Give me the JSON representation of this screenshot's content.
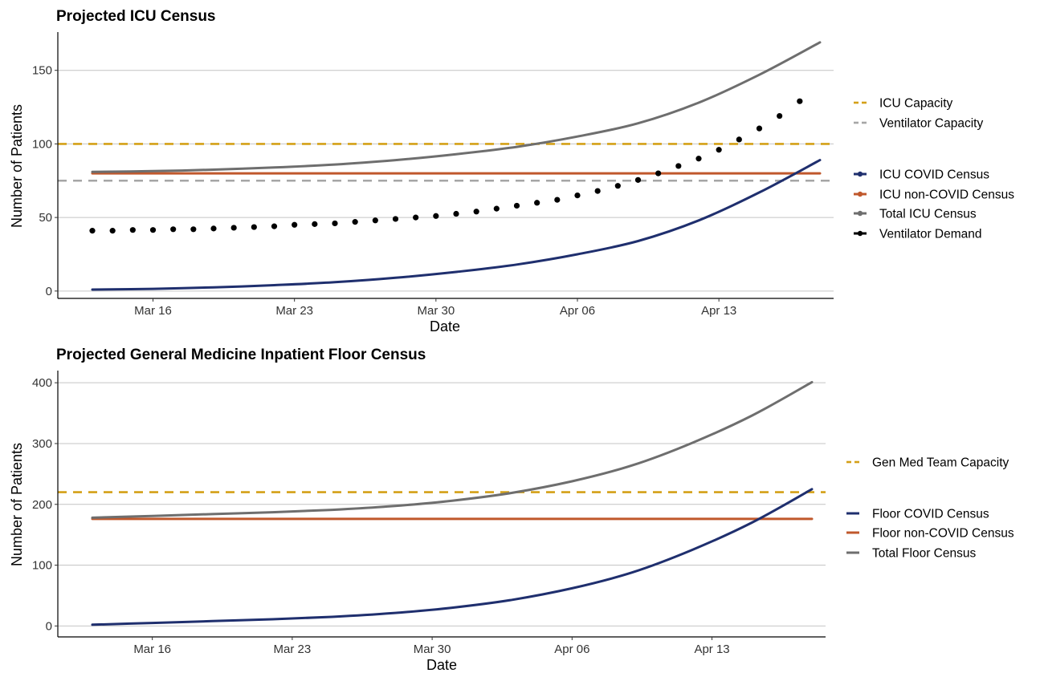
{
  "chart_data": [
    {
      "type": "line",
      "title": "Projected ICU Census",
      "xlabel": "Date",
      "ylabel": "Number of Patients",
      "x_range": [
        "2020-03-13",
        "2020-04-18"
      ],
      "ylim": [
        -5,
        176
      ],
      "y_ticks": [
        0,
        50,
        100,
        150
      ],
      "x_ticks": [
        {
          "date": "2020-03-16",
          "label": "Mar 16"
        },
        {
          "date": "2020-03-23",
          "label": "Mar 23"
        },
        {
          "date": "2020-03-30",
          "label": "Mar 30"
        },
        {
          "date": "2020-04-06",
          "label": "Apr 06"
        },
        {
          "date": "2020-04-13",
          "label": "Apr 13"
        }
      ],
      "grid": "horizontal major",
      "legend_position": "right",
      "capacity_lines": [
        {
          "name": "ICU Capacity",
          "value": 100,
          "color": "#D4A017",
          "style": "dashed"
        },
        {
          "name": "Ventilator Capacity",
          "value": 75,
          "color": "#A6A6A6",
          "style": "dashed"
        }
      ],
      "x_dates": [
        "2020-03-13",
        "2020-03-16",
        "2020-03-19",
        "2020-03-22",
        "2020-03-25",
        "2020-03-28",
        "2020-03-31",
        "2020-04-03",
        "2020-04-06",
        "2020-04-09",
        "2020-04-12",
        "2020-04-15",
        "2020-04-18"
      ],
      "series": [
        {
          "name": "ICU COVID Census",
          "color": "#1F2F6E",
          "values": [
            1,
            1.5,
            2.5,
            4,
            6,
            9,
            13,
            18,
            25,
            34,
            48,
            67,
            89
          ]
        },
        {
          "name": "ICU non-COVID Census",
          "color": "#C0582C",
          "values": [
            80,
            80,
            80,
            80,
            80,
            80,
            80,
            80,
            80,
            80,
            80,
            80,
            80
          ]
        },
        {
          "name": "Total ICU Census",
          "color": "#6E6E6E",
          "values": [
            81,
            81.5,
            82.5,
            84,
            86,
            89,
            93,
            98,
            105,
            114,
            128,
            147,
            169
          ]
        }
      ],
      "points": {
        "name": "Ventilator Demand",
        "color": "#000000",
        "start": "2020-03-13",
        "values": [
          41,
          41,
          41.5,
          41.5,
          42,
          42,
          42.5,
          43,
          43.5,
          44,
          45,
          45.5,
          46,
          47,
          48,
          49,
          50,
          51,
          52.5,
          54,
          56,
          58,
          60,
          62,
          65,
          68,
          71.5,
          75.5,
          80,
          85,
          90,
          96,
          103,
          110.5,
          119,
          129
        ]
      },
      "legend": [
        {
          "label": "ICU Capacity",
          "kind": "dashed",
          "color": "#D4A017"
        },
        {
          "label": "Ventilator Capacity",
          "kind": "dashed",
          "color": "#A6A6A6"
        },
        {
          "label": "ICU COVID Census",
          "kind": "line-point",
          "color": "#1F2F6E"
        },
        {
          "label": "ICU non-COVID Census",
          "kind": "line-point",
          "color": "#C0582C"
        },
        {
          "label": "Total ICU Census",
          "kind": "line-point",
          "color": "#6E6E6E"
        },
        {
          "label": "Ventilator Demand",
          "kind": "line-point",
          "color": "#000000"
        }
      ]
    },
    {
      "type": "line",
      "title": "Projected General Medicine Inpatient Floor Census",
      "xlabel": "Date",
      "ylabel": "Number of Patients",
      "x_range": [
        "2020-03-13",
        "2020-04-18"
      ],
      "ylim": [
        -18,
        420
      ],
      "y_ticks": [
        0,
        100,
        200,
        300,
        400
      ],
      "x_ticks": [
        {
          "date": "2020-03-16",
          "label": "Mar 16"
        },
        {
          "date": "2020-03-23",
          "label": "Mar 23"
        },
        {
          "date": "2020-03-30",
          "label": "Mar 30"
        },
        {
          "date": "2020-04-06",
          "label": "Apr 06"
        },
        {
          "date": "2020-04-13",
          "label": "Apr 13"
        }
      ],
      "grid": "horizontal major",
      "legend_position": "right",
      "capacity_lines": [
        {
          "name": "Gen Med Team Capacity",
          "value": 220,
          "color": "#D4A017",
          "style": "dashed"
        }
      ],
      "x_dates": [
        "2020-03-13",
        "2020-03-16",
        "2020-03-19",
        "2020-03-22",
        "2020-03-25",
        "2020-03-28",
        "2020-03-31",
        "2020-04-03",
        "2020-04-06",
        "2020-04-09",
        "2020-04-12",
        "2020-04-15",
        "2020-04-18"
      ],
      "series": [
        {
          "name": "Floor COVID Census",
          "color": "#1F2F6E",
          "values": [
            2,
            5,
            8,
            11,
            15,
            21,
            30,
            43,
            62,
            88,
            125,
            170,
            225
          ]
        },
        {
          "name": "Floor non-COVID Census",
          "color": "#C0582C",
          "values": [
            176,
            176,
            176,
            176,
            176,
            176,
            176,
            176,
            176,
            176,
            176,
            176,
            176
          ]
        },
        {
          "name": "Total Floor Census",
          "color": "#6E6E6E",
          "values": [
            178,
            181,
            184,
            187,
            191,
            197,
            206,
            219,
            238,
            264,
            301,
            346,
            401
          ]
        }
      ],
      "legend": [
        {
          "label": "Gen Med Team Capacity",
          "kind": "dashed",
          "color": "#D4A017"
        },
        {
          "label": "Floor COVID Census",
          "kind": "line",
          "color": "#1F2F6E"
        },
        {
          "label": "Floor non-COVID Census",
          "kind": "line",
          "color": "#C0582C"
        },
        {
          "label": "Total Floor Census",
          "kind": "line",
          "color": "#6E6E6E"
        }
      ]
    }
  ]
}
